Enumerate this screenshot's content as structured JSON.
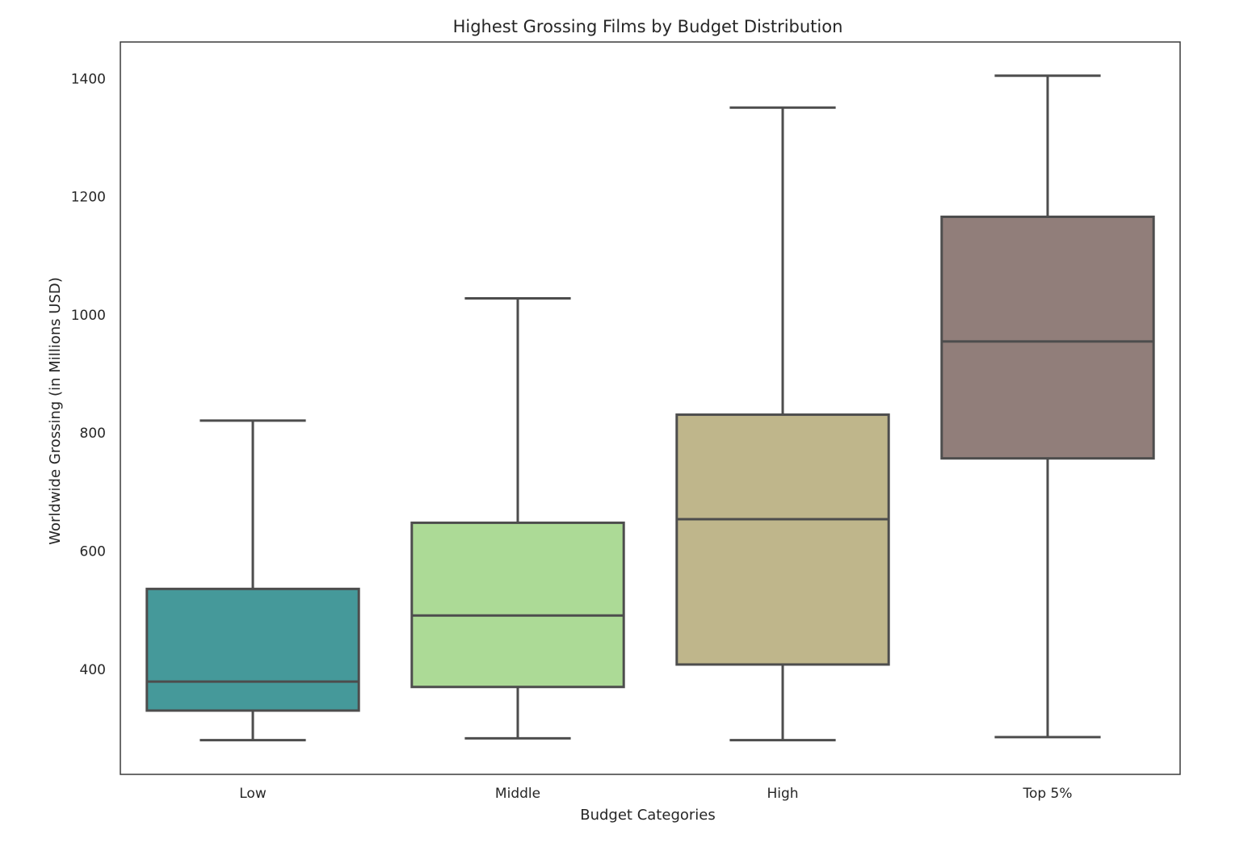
{
  "chart_data": {
    "type": "box",
    "title": "Highest Grossing Films by Budget Distribution",
    "xlabel": "Budget Categories",
    "ylabel": "Worldwide Grossing (in Millions USD)",
    "ylim": [
      222,
      1462
    ],
    "yticks": [
      400,
      600,
      800,
      1000,
      1200,
      1400
    ],
    "grid": false,
    "categories": [
      "Low",
      "Middle",
      "High",
      "Top 5%"
    ],
    "boxes": [
      {
        "category": "Low",
        "whisker_low": 280,
        "q1": 330,
        "median": 379,
        "q3": 536,
        "whisker_high": 821,
        "color": "#45999a"
      },
      {
        "category": "Middle",
        "whisker_low": 283,
        "q1": 370,
        "median": 491,
        "q3": 648,
        "whisker_high": 1028,
        "color": "#acda96"
      },
      {
        "category": "High",
        "whisker_low": 280,
        "q1": 408,
        "median": 654,
        "q3": 831,
        "whisker_high": 1351,
        "color": "#bfb68b"
      },
      {
        "category": "Top 5%",
        "whisker_low": 285,
        "q1": 757,
        "median": 955,
        "q3": 1166,
        "whisker_high": 1405,
        "color": "#917e7a"
      }
    ]
  }
}
